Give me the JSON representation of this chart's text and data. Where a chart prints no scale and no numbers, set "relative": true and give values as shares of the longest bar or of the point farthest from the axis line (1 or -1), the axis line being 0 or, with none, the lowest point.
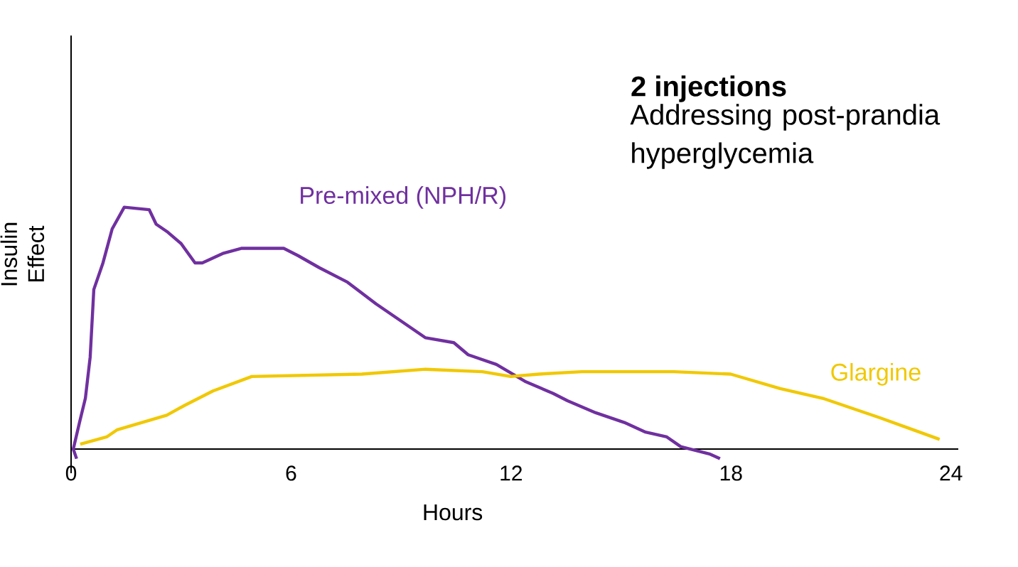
{
  "chart_data": {
    "type": "line",
    "title": "2 injections",
    "subtitle": "Addressing post-prandia hyperglycemia",
    "xlabel": "Hours",
    "ylabel": "Insulin Effect",
    "relative": true,
    "xlim": [
      0,
      24.2
    ],
    "xticks": [
      0,
      6,
      12,
      18,
      24
    ],
    "tick_labels": "x",
    "legend": false,
    "grid": false,
    "marker": "none",
    "line_style": "solid",
    "series": [
      {
        "name": "Pre-mixed (NPH/R)",
        "color": "#7030a0",
        "x": [
          0.15,
          0.06,
          0.23,
          0.39,
          0.52,
          0.62,
          0.87,
          1.12,
          1.45,
          2.13,
          2.32,
          2.61,
          3.0,
          3.38,
          3.58,
          4.16,
          4.64,
          5.8,
          6.19,
          6.77,
          7.54,
          8.32,
          8.9,
          9.67,
          10.44,
          10.83,
          11.6,
          12.38,
          13.15,
          13.54,
          14.31,
          15.09,
          15.67,
          16.25,
          16.63,
          17.41,
          17.7
        ],
        "values": [
          -0.04,
          0,
          0.11,
          0.21,
          0.38,
          0.66,
          0.77,
          0.91,
          1.0,
          0.99,
          0.93,
          0.9,
          0.85,
          0.77,
          0.77,
          0.81,
          0.83,
          0.83,
          0.8,
          0.75,
          0.69,
          0.6,
          0.54,
          0.46,
          0.44,
          0.39,
          0.35,
          0.28,
          0.23,
          0.2,
          0.15,
          0.11,
          0.07,
          0.05,
          0.01,
          -0.02,
          -0.04
        ]
      },
      {
        "name": "Glargine",
        "color": "#f0c800",
        "x": [
          0.25,
          0.97,
          1.26,
          2.61,
          3.09,
          3.87,
          4.93,
          7.93,
          9.67,
          11.22,
          11.99,
          12.77,
          13.93,
          16.44,
          17.99,
          19.34,
          20.5,
          22.05,
          23.69
        ],
        "values": [
          0.02,
          0.05,
          0.08,
          0.14,
          0.18,
          0.24,
          0.3,
          0.31,
          0.33,
          0.32,
          0.3,
          0.31,
          0.32,
          0.32,
          0.31,
          0.25,
          0.21,
          0.13,
          0.04
        ]
      }
    ]
  }
}
